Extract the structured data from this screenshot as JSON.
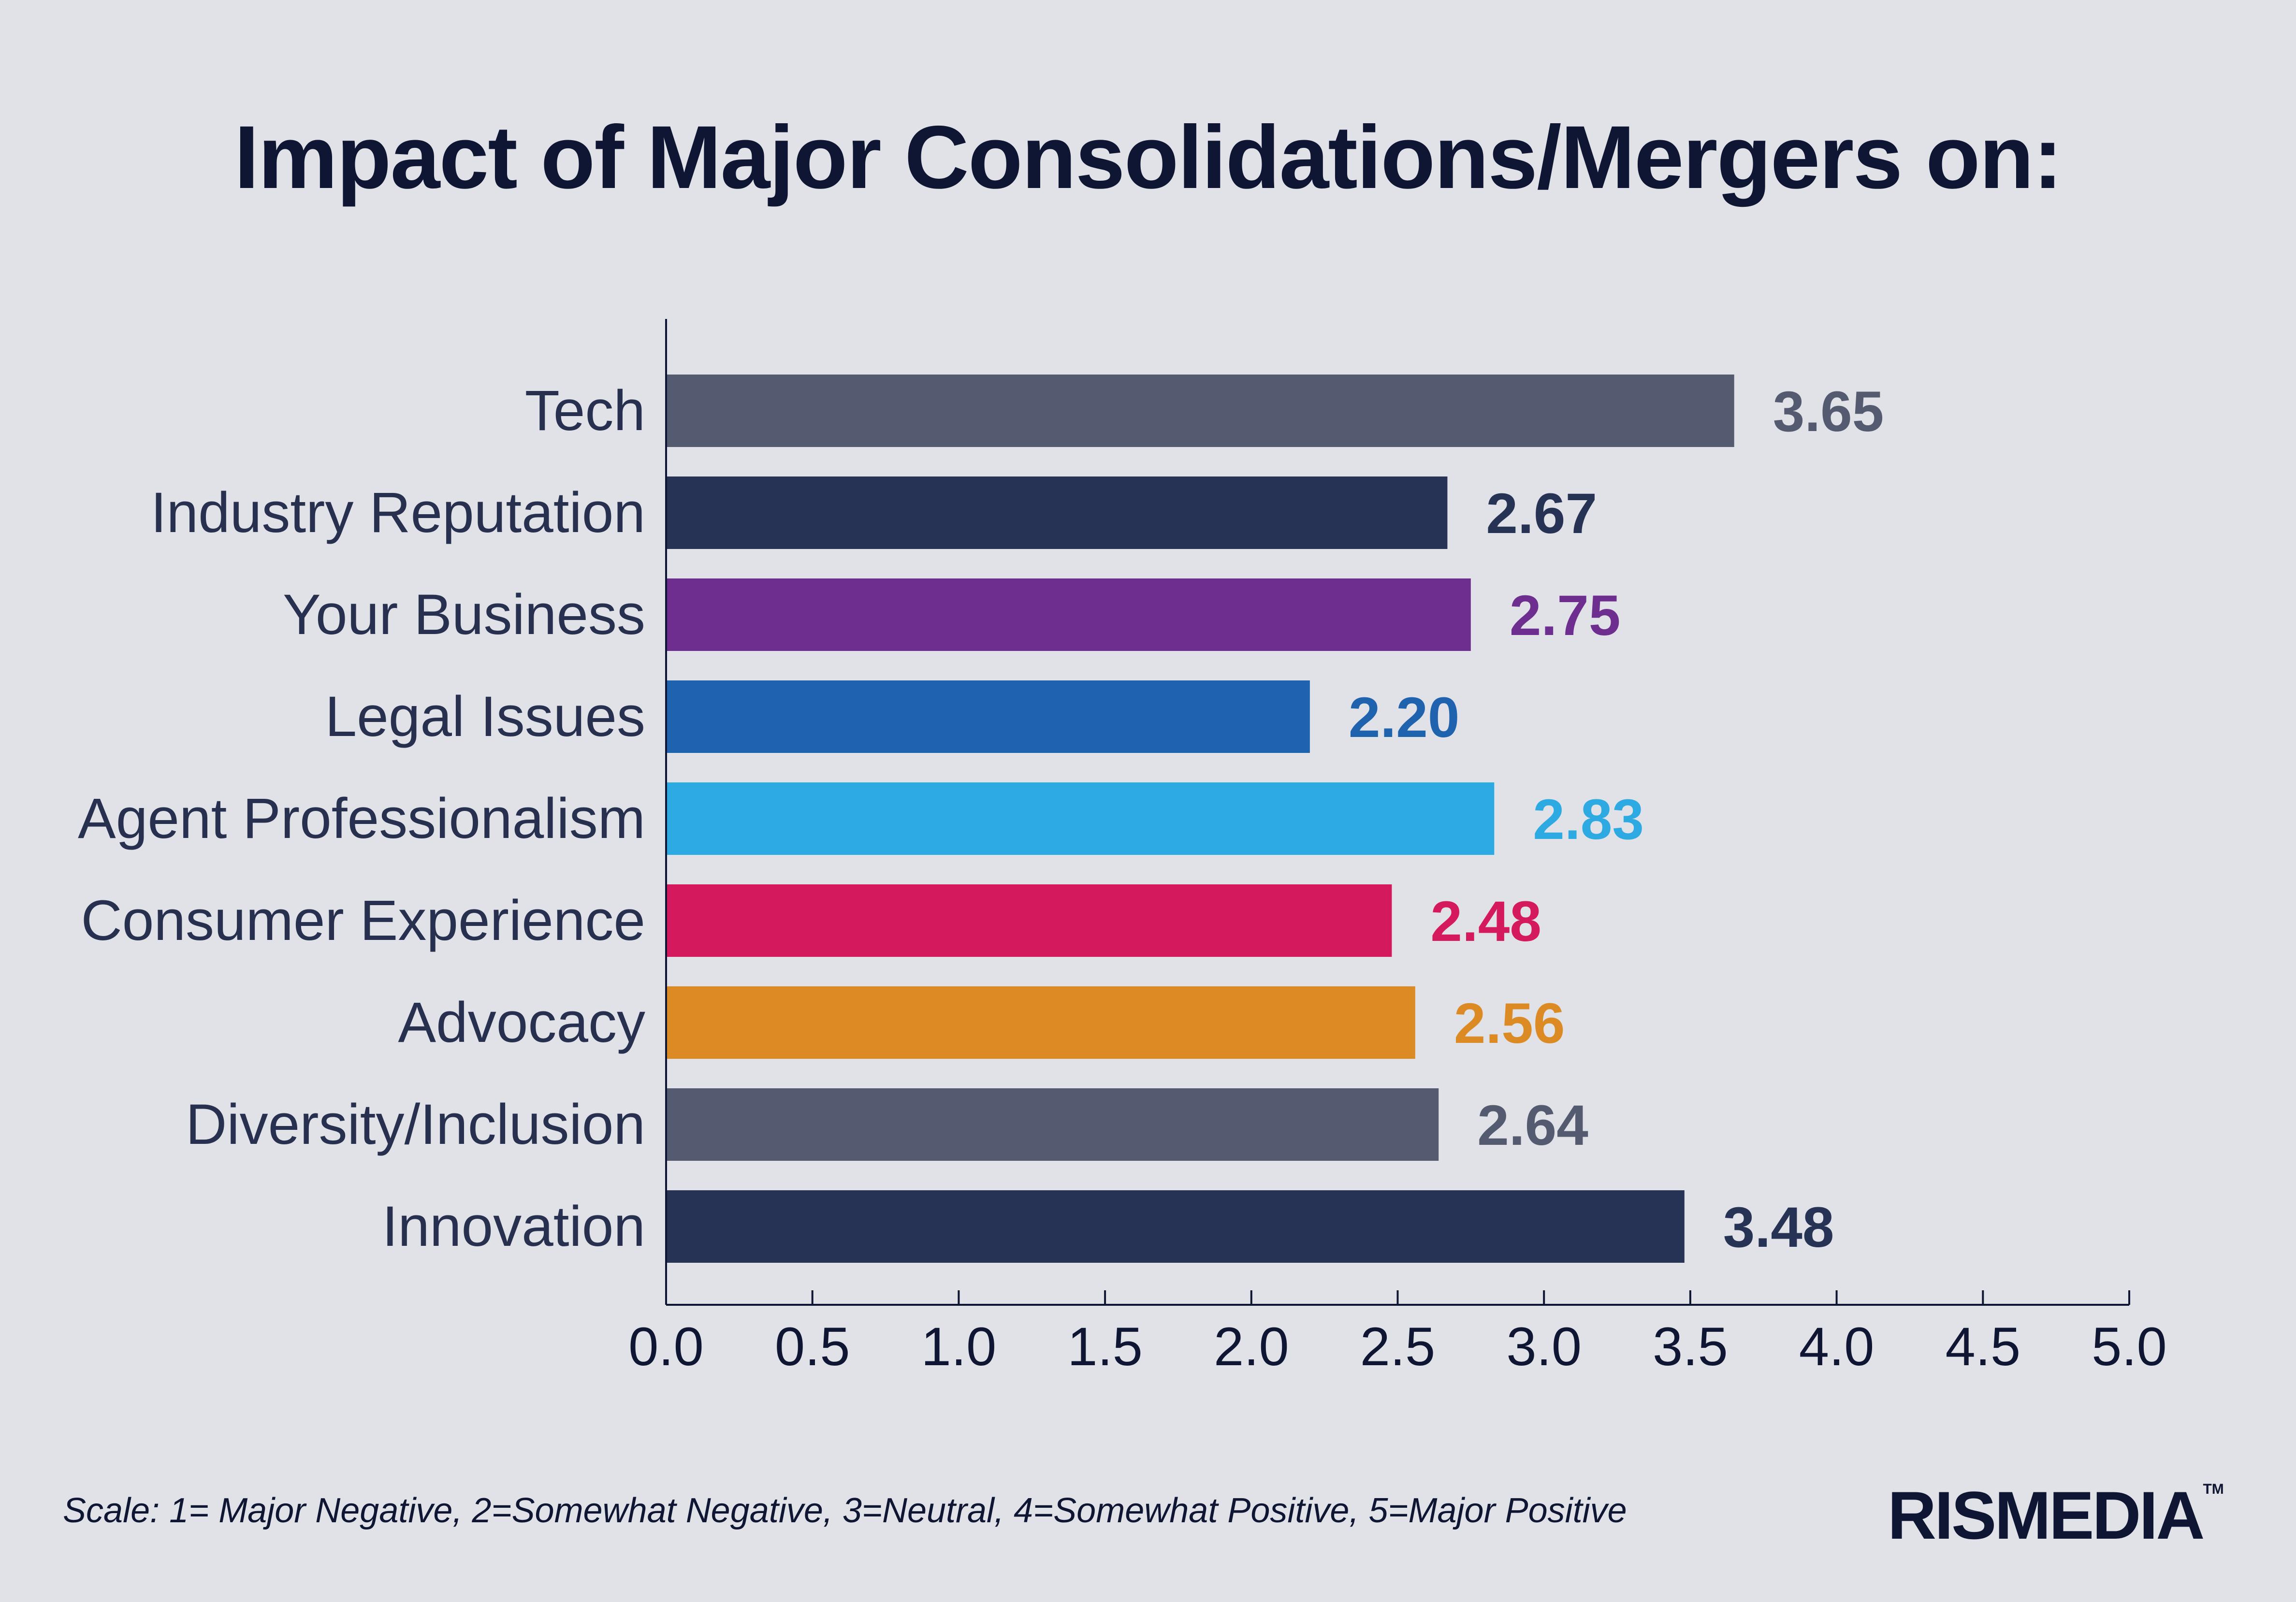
{
  "chart_data": {
    "type": "bar",
    "orientation": "horizontal",
    "title": "Impact of Major Consolidations/Mergers on:",
    "categories": [
      "Tech",
      "Industry Reputation",
      "Your Business",
      "Legal Issues",
      "Agent Professionalism",
      "Consumer Experience",
      "Advocacy",
      "Diversity/Inclusion",
      "Innovation"
    ],
    "values": [
      3.65,
      2.67,
      2.75,
      2.2,
      2.83,
      2.48,
      2.56,
      2.64,
      3.48
    ],
    "value_labels": [
      "3.65",
      "2.67",
      "2.75",
      "2.20",
      "2.83",
      "2.48",
      "2.56",
      "2.64",
      "3.48"
    ],
    "colors": [
      "#545a70",
      "#263355",
      "#6e2e90",
      "#1f62ae",
      "#2eaae3",
      "#d41a5c",
      "#dc8b24",
      "#545a70",
      "#263355"
    ],
    "xlabel": "",
    "ylabel": "",
    "xlim": [
      0,
      5
    ],
    "xticks": [
      "0.0",
      "0.5",
      "1.0",
      "1.5",
      "2.0",
      "2.5",
      "3.0",
      "3.5",
      "4.0",
      "4.5",
      "5.0"
    ],
    "xtick_values": [
      0,
      0.5,
      1,
      1.5,
      2,
      2.5,
      3,
      3.5,
      4,
      4.5,
      5
    ],
    "grid": false,
    "legend": "none"
  },
  "footer": {
    "scale_note": "Scale: 1= Major Negative, 2=Somewhat Negative, 3=Neutral, 4=Somewhat Positive, 5=Major Positive",
    "brand": "RISMEDIA",
    "trademark": "TM"
  }
}
